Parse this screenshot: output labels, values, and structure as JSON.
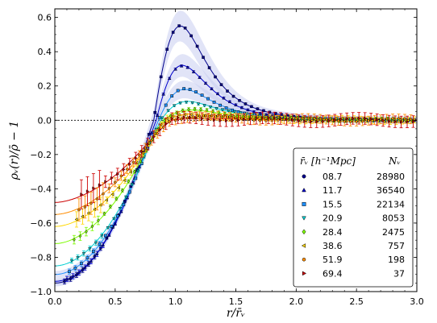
{
  "chart_data": {
    "type": "line",
    "xlabel": "r/r̄ᵥ",
    "ylabel": "ρᵥ(r)/ρ̄ − 1",
    "xlim": [
      0.0,
      3.0
    ],
    "ylim": [
      -1.0,
      0.65
    ],
    "xticks": [
      0.0,
      0.5,
      1.0,
      1.5,
      2.0,
      2.5,
      3.0
    ],
    "xtick_labels": [
      "0.0",
      "0.5",
      "1.0",
      "1.5",
      "2.0",
      "2.5",
      "3.0"
    ],
    "yticks": [
      -1.0,
      -0.8,
      -0.6,
      -0.4,
      -0.2,
      0.0,
      0.2,
      0.4,
      0.6
    ],
    "ytick_labels": [
      "−1.0",
      "−0.8",
      "−0.6",
      "−0.4",
      "−0.2",
      "0.0",
      "0.2",
      "0.4",
      "0.6"
    ],
    "reference_line": {
      "y": 0.0,
      "style": "dotted"
    },
    "legend": {
      "placement": "lower-right",
      "header_r": "r̄ᵥ [h⁻¹Mpc]",
      "header_n": "Nᵥ"
    },
    "series": [
      {
        "name": "08.7",
        "N": "28980",
        "color": "#00008b",
        "marker": "circle",
        "delta_c": -0.95,
        "peak": 0.55,
        "r_s": 0.82,
        "alpha": 2.0,
        "beta": 9.0,
        "band": true
      },
      {
        "name": "11.7",
        "N": "36540",
        "color": "#0000cd",
        "marker": "triangle-up",
        "delta_c": -0.94,
        "peak": 0.32,
        "r_s": 0.84,
        "alpha": 2.0,
        "beta": 8.8,
        "band": true
      },
      {
        "name": "15.5",
        "N": "22134",
        "color": "#1e90ff",
        "marker": "square",
        "delta_c": -0.9,
        "peak": 0.18,
        "r_s": 0.86,
        "alpha": 1.95,
        "beta": 8.5,
        "band": true
      },
      {
        "name": "20.9",
        "N": "8053",
        "color": "#00ced1",
        "marker": "triangle-down",
        "delta_c": -0.85,
        "peak": 0.11,
        "r_s": 0.88,
        "alpha": 1.9,
        "beta": 8.0,
        "band": false
      },
      {
        "name": "28.4",
        "N": "2475",
        "color": "#7cfc00",
        "marker": "diamond",
        "delta_c": -0.72,
        "peak": 0.06,
        "r_s": 0.9,
        "alpha": 1.85,
        "beta": 7.5,
        "band": false
      },
      {
        "name": "38.6",
        "N": "757",
        "color": "#ffd700",
        "marker": "triangle-left",
        "delta_c": -0.62,
        "peak": 0.035,
        "r_s": 0.92,
        "alpha": 1.8,
        "beta": 7.2,
        "band": false
      },
      {
        "name": "51.9",
        "N": "198",
        "color": "#ff8c00",
        "marker": "hexagon",
        "delta_c": -0.55,
        "peak": 0.02,
        "r_s": 0.95,
        "alpha": 1.75,
        "beta": 7.0,
        "band": false
      },
      {
        "name": "69.4",
        "N": "37",
        "color": "#cc0000",
        "marker": "triangle-right",
        "delta_c": -0.48,
        "peak": 0.01,
        "r_s": 0.97,
        "alpha": 1.7,
        "beta": 6.8,
        "band": false
      }
    ]
  }
}
